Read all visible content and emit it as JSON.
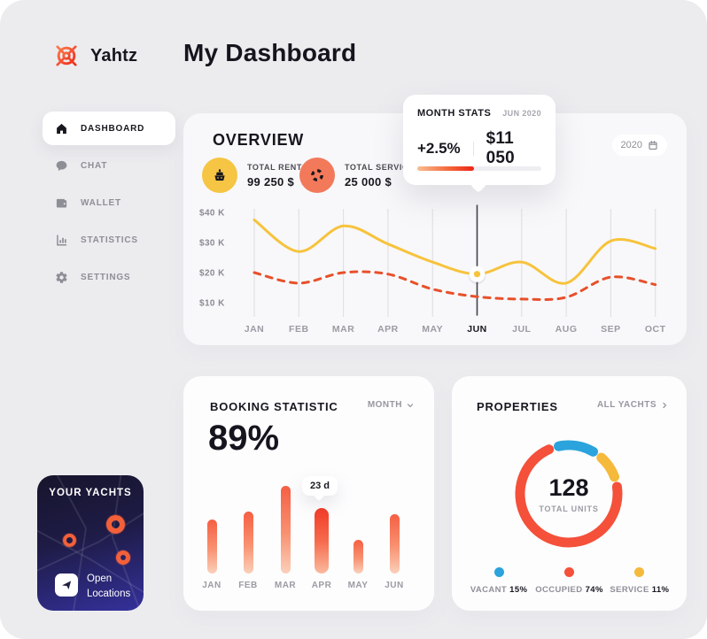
{
  "header": {
    "brand": "Yahtz",
    "title": "My Dashboard"
  },
  "sidebar": {
    "items": [
      {
        "label": "DASHBOARD",
        "icon": "home",
        "active": true
      },
      {
        "label": "CHAT",
        "icon": "chat",
        "active": false
      },
      {
        "label": "WALLET",
        "icon": "wallet",
        "active": false
      },
      {
        "label": "STATISTICS",
        "icon": "statistics",
        "active": false
      },
      {
        "label": "SETTINGS",
        "icon": "settings",
        "active": false
      }
    ]
  },
  "overview": {
    "title": "OVERVIEW",
    "year_selector": "2020",
    "stats": [
      {
        "label": "TOTAL RENT",
        "value": "99 250 $",
        "icon": "yacht",
        "bg": "#F5C543"
      },
      {
        "label": "TOTAL SERVICE",
        "value": "25 000 $",
        "icon": "lifebuoy",
        "bg": "#F3795B"
      }
    ],
    "tooltip": {
      "title": "MONTH STATS",
      "period": "JUN 2020",
      "change": "+2.5%",
      "amount": "$11 050",
      "progress_pct": 46
    }
  },
  "booking": {
    "title": "BOOKING STATISTIC",
    "range_selector": "MONTH",
    "headline": "89%"
  },
  "properties": {
    "title": "PROPERTIES",
    "link": "ALL YACHTS",
    "center_value": "128",
    "center_label": "TOTAL UNITS"
  },
  "yachts": {
    "title": "YOUR YACHTS",
    "button": "Open Locations"
  },
  "chart_data": [
    {
      "id": "overview-line",
      "type": "line",
      "title": "OVERVIEW",
      "x": [
        "JAN",
        "FEB",
        "MAR",
        "APR",
        "MAY",
        "JUN",
        "JUL",
        "AUG",
        "SEP",
        "OCT"
      ],
      "y_ticks": [
        "$40 K",
        "$30 K",
        "$20 K",
        "$10 K"
      ],
      "y_tick_values": [
        40,
        30,
        20,
        10
      ],
      "ylim": [
        5,
        42
      ],
      "unit": "thousand USD",
      "selected_x": "JUN",
      "grid": "vertical",
      "series": [
        {
          "name": "TOTAL RENT",
          "style": "solid",
          "color": "#F7C33C",
          "values": [
            37.5,
            27,
            35.5,
            29.5,
            23.5,
            19.5,
            23.5,
            16.5,
            30.5,
            28
          ]
        },
        {
          "name": "TOTAL SERVICE",
          "style": "dashed",
          "color": "#E8502A",
          "values": [
            20,
            16.5,
            20,
            19.5,
            14.5,
            12,
            11.2,
            11.8,
            18.5,
            16
          ]
        }
      ]
    },
    {
      "id": "booking-bars",
      "type": "bar",
      "title": "BOOKING STATISTIC",
      "categories": [
        "JAN",
        "FEB",
        "MAR",
        "APR",
        "MAY",
        "JUN"
      ],
      "values": [
        19,
        22,
        31,
        23,
        12,
        21
      ],
      "unit": "days",
      "ylim": [
        0,
        31
      ],
      "highlight": {
        "category": "APR",
        "label": "23 d"
      }
    },
    {
      "id": "properties-donut",
      "type": "pie",
      "title": "PROPERTIES",
      "center_value": "128",
      "center_label": "TOTAL UNITS",
      "segments": [
        {
          "name": "VACANT",
          "pct": 15,
          "color": "#2BA3DC"
        },
        {
          "name": "OCCUPIED",
          "pct": 74,
          "color": "#F4503A"
        },
        {
          "name": "SERVICE",
          "pct": 11,
          "color": "#F5B93B"
        }
      ],
      "legend_position": "bottom"
    }
  ]
}
